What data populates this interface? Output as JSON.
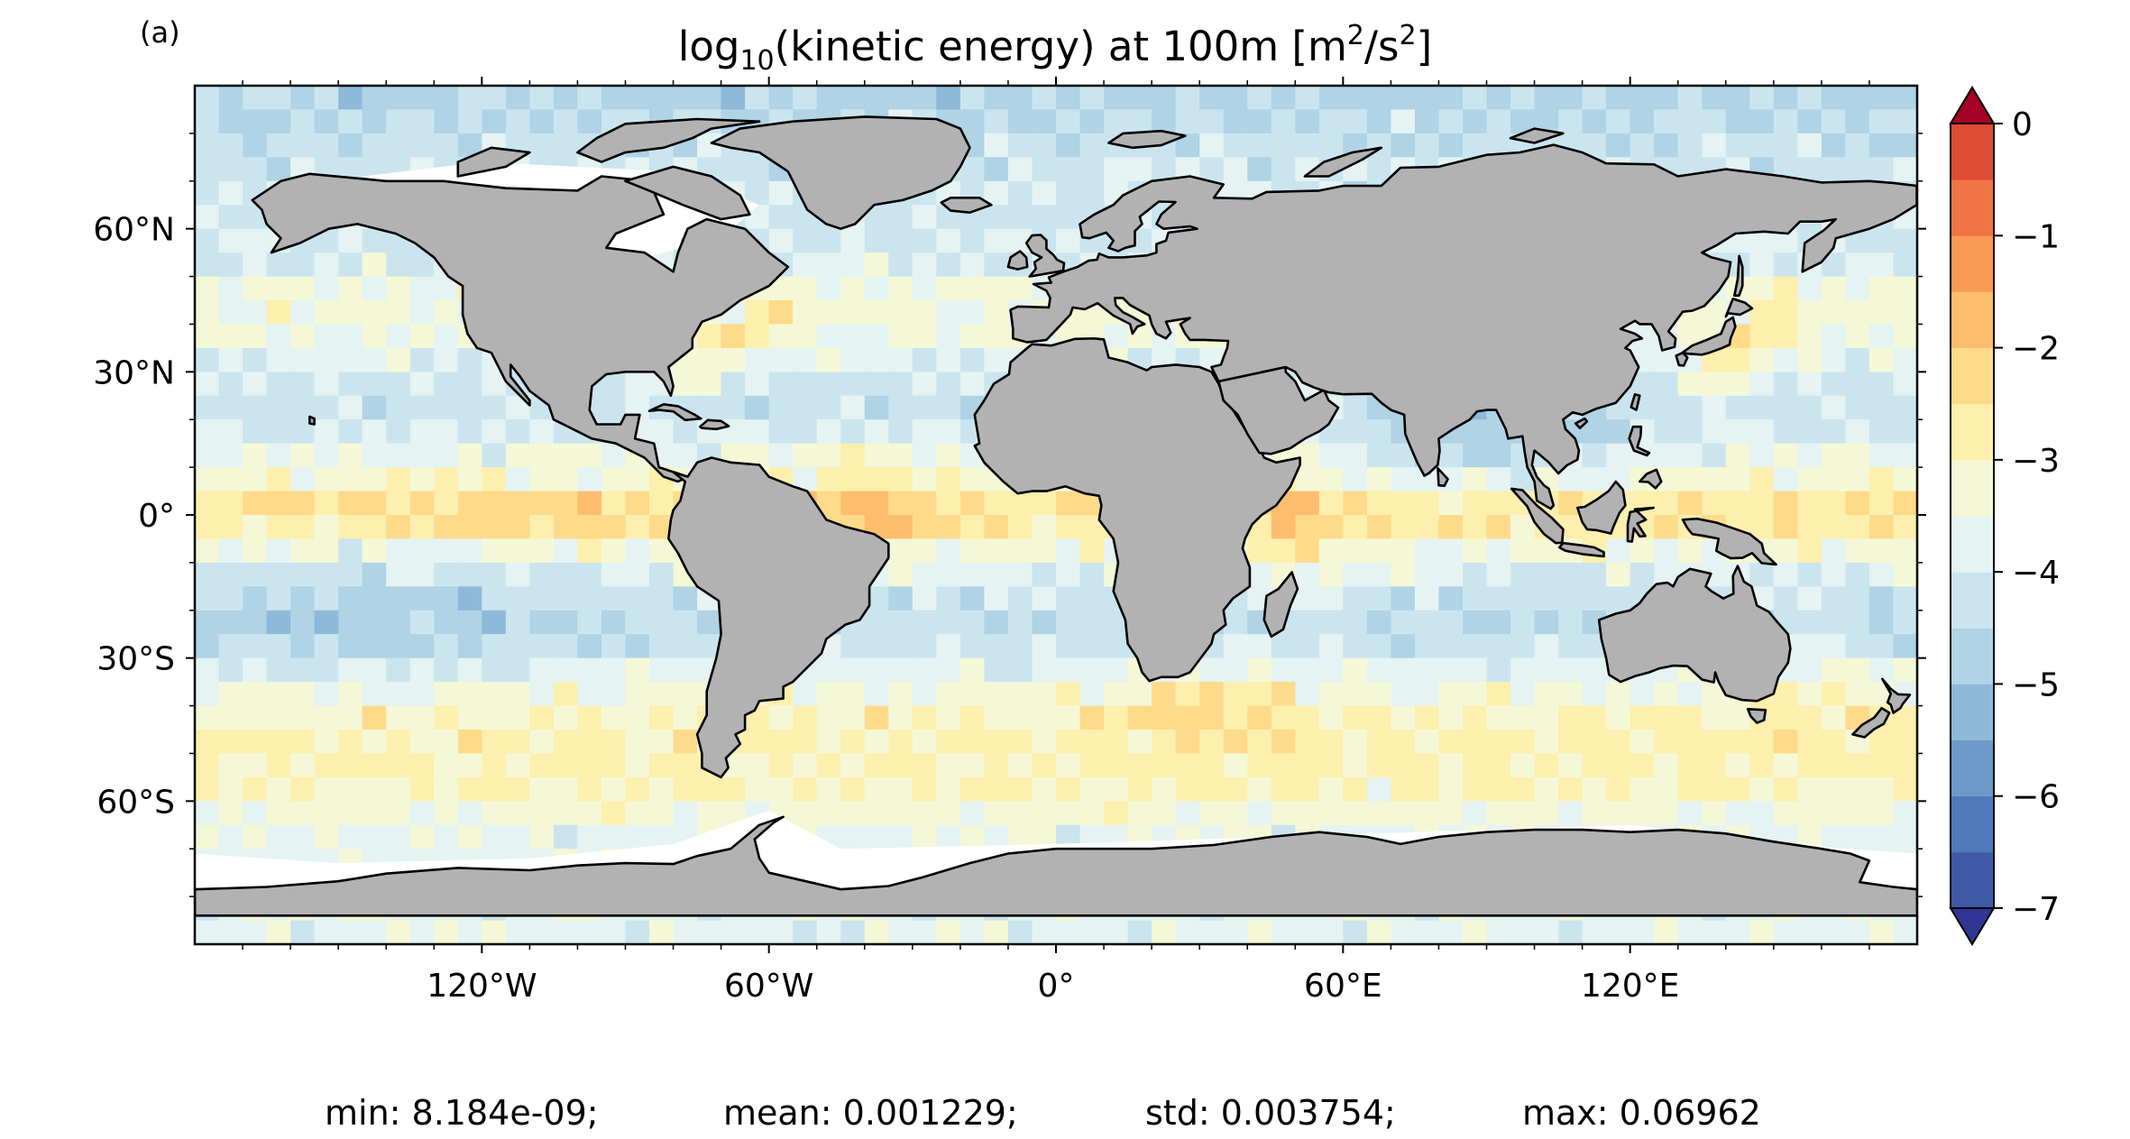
{
  "panel_label": "(a)",
  "title": {
    "prefix": "log",
    "subscript": "10",
    "middle": "(kinetic energy) at 100m [m",
    "sup1": "2",
    "slash": "/s",
    "sup2": "2",
    "suffix": "]"
  },
  "map": {
    "projection": "equirectangular",
    "lon_range": [
      -180,
      180
    ],
    "lat_range": [
      -90,
      90
    ],
    "field": "log10 kinetic energy at 100m",
    "land_color": "#b2b2b2",
    "coast_color": "#000000",
    "lat_ticks": [
      {
        "value": 60,
        "label": "60°N"
      },
      {
        "value": 30,
        "label": "30°N"
      },
      {
        "value": 0,
        "label": "0°"
      },
      {
        "value": -30,
        "label": "30°S"
      },
      {
        "value": -60,
        "label": "60°S"
      }
    ],
    "lon_ticks": [
      {
        "value": -120,
        "label": "120°W"
      },
      {
        "value": -60,
        "label": "60°W"
      },
      {
        "value": 0,
        "label": "0°"
      },
      {
        "value": 60,
        "label": "60°E"
      },
      {
        "value": 120,
        "label": "120°E"
      }
    ]
  },
  "colorbar": {
    "min": -7,
    "max": 0,
    "step": 0.5,
    "extend": "both",
    "colors": [
      "#313695",
      "#3f59a6",
      "#4f79b9",
      "#6c9ac8",
      "#8fb9d9",
      "#b0d3e6",
      "#cbe5ef",
      "#e5f3f3",
      "#f5f8d6",
      "#fdefad",
      "#fedb8a",
      "#fdbd6e",
      "#f99a57",
      "#f17446",
      "#df4c34",
      "#c8262b",
      "#a50026"
    ],
    "ticks": [
      {
        "value": 0,
        "label": "0"
      },
      {
        "value": -1,
        "label": "−1"
      },
      {
        "value": -2,
        "label": "−2"
      },
      {
        "value": -3,
        "label": "−3"
      },
      {
        "value": -4,
        "label": "−4"
      },
      {
        "value": -5,
        "label": "−5"
      },
      {
        "value": -6,
        "label": "−6"
      },
      {
        "value": -7,
        "label": "−7"
      }
    ]
  },
  "stats": {
    "min": "min: 8.184e-09;",
    "mean": "mean: 0.001229;",
    "std": "std: 0.003754;",
    "max": "max: 0.06962"
  }
}
